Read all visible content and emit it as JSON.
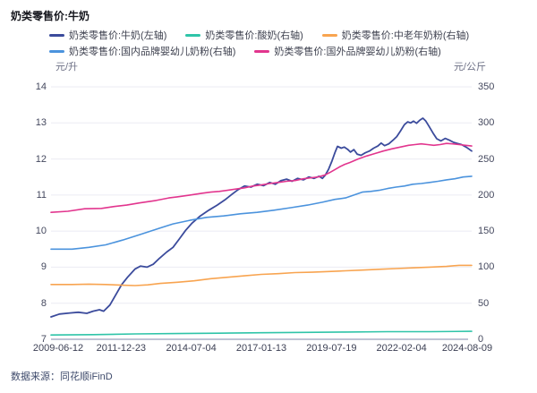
{
  "title": "奶类零售价:牛奶",
  "source": "数据来源：同花顺iFinD",
  "axes": {
    "left_unit": "元/升",
    "right_unit": "元/公斤",
    "left_ticks": [
      "14",
      "13",
      "12",
      "11",
      "10",
      "9",
      "8",
      "7"
    ],
    "right_ticks": [
      "350",
      "300",
      "250",
      "200",
      "150",
      "100",
      "50",
      "0"
    ],
    "x_labels": [
      "2009-06-12",
      "2011-12-23",
      "2014-07-04",
      "2017-01-13",
      "2019-07-19",
      "2022-02-04",
      "2024-08-09"
    ]
  },
  "legend": [
    {
      "label": "奶类零售价:牛奶(左轴)",
      "color": "#3b4b9c",
      "row": 0
    },
    {
      "label": "奶类零售价:酸奶(右轴)",
      "color": "#2fc4a8",
      "row": 0
    },
    {
      "label": "奶类零售价:中老年奶粉(右轴)",
      "color": "#f8a450",
      "row": 0
    },
    {
      "label": "奶类零售价:国内品牌婴幼儿奶粉(右轴)",
      "color": "#4b93dd",
      "row": 1
    },
    {
      "label": "奶类零售价:国外品牌婴幼儿奶粉(右轴)",
      "color": "#e2358e",
      "row": 1
    }
  ],
  "chart_data": {
    "type": "line",
    "title": "奶类零售价:牛奶",
    "x_range": [
      "2009-06-12",
      "2024-08-09"
    ],
    "x_encoding": "fraction of date range 2009-06-12 (0) to 2024-08-09 (1)",
    "x_tick_labels": [
      "2009-06-12",
      "2011-12-23",
      "2014-07-04",
      "2017-01-13",
      "2019-07-19",
      "2022-02-04",
      "2024-08-09"
    ],
    "left_axis": {
      "label": "元/升",
      "min": 7,
      "max": 14
    },
    "right_axis": {
      "label": "元/公斤",
      "min": 0,
      "max": 350
    },
    "grid": "horizontal",
    "legend_position": "top",
    "series": [
      {
        "name": "奶类零售价:牛奶(左轴)",
        "axis": "left",
        "unit": "元/升",
        "color": "#3b4b9c",
        "width": 1.8,
        "points": [
          [
            0,
            7.62
          ],
          [
            0.02,
            7.7
          ],
          [
            0.045,
            7.73
          ],
          [
            0.065,
            7.75
          ],
          [
            0.085,
            7.72
          ],
          [
            0.1,
            7.78
          ],
          [
            0.115,
            7.82
          ],
          [
            0.125,
            7.78
          ],
          [
            0.14,
            7.95
          ],
          [
            0.155,
            8.25
          ],
          [
            0.168,
            8.52
          ],
          [
            0.182,
            8.72
          ],
          [
            0.2,
            8.95
          ],
          [
            0.213,
            9.03
          ],
          [
            0.228,
            9.0
          ],
          [
            0.243,
            9.08
          ],
          [
            0.258,
            9.25
          ],
          [
            0.275,
            9.42
          ],
          [
            0.29,
            9.55
          ],
          [
            0.305,
            9.78
          ],
          [
            0.32,
            10.02
          ],
          [
            0.335,
            10.22
          ],
          [
            0.355,
            10.42
          ],
          [
            0.375,
            10.58
          ],
          [
            0.395,
            10.72
          ],
          [
            0.415,
            10.88
          ],
          [
            0.43,
            11.02
          ],
          [
            0.445,
            11.15
          ],
          [
            0.46,
            11.25
          ],
          [
            0.475,
            11.22
          ],
          [
            0.49,
            11.3
          ],
          [
            0.505,
            11.26
          ],
          [
            0.52,
            11.35
          ],
          [
            0.533,
            11.3
          ],
          [
            0.547,
            11.4
          ],
          [
            0.56,
            11.44
          ],
          [
            0.573,
            11.38
          ],
          [
            0.586,
            11.46
          ],
          [
            0.6,
            11.42
          ],
          [
            0.613,
            11.5
          ],
          [
            0.625,
            11.46
          ],
          [
            0.637,
            11.52
          ],
          [
            0.645,
            11.46
          ],
          [
            0.652,
            11.55
          ],
          [
            0.66,
            11.72
          ],
          [
            0.668,
            11.95
          ],
          [
            0.675,
            12.18
          ],
          [
            0.681,
            12.35
          ],
          [
            0.69,
            12.3
          ],
          [
            0.697,
            12.33
          ],
          [
            0.705,
            12.27
          ],
          [
            0.712,
            12.19
          ],
          [
            0.72,
            12.26
          ],
          [
            0.728,
            12.13
          ],
          [
            0.737,
            12.1
          ],
          [
            0.747,
            12.17
          ],
          [
            0.757,
            12.22
          ],
          [
            0.767,
            12.3
          ],
          [
            0.777,
            12.36
          ],
          [
            0.785,
            12.44
          ],
          [
            0.793,
            12.37
          ],
          [
            0.803,
            12.42
          ],
          [
            0.813,
            12.52
          ],
          [
            0.822,
            12.62
          ],
          [
            0.831,
            12.78
          ],
          [
            0.84,
            12.95
          ],
          [
            0.848,
            13.03
          ],
          [
            0.855,
            13.0
          ],
          [
            0.862,
            13.05
          ],
          [
            0.869,
            12.99
          ],
          [
            0.877,
            13.08
          ],
          [
            0.884,
            13.13
          ],
          [
            0.891,
            13.05
          ],
          [
            0.899,
            12.9
          ],
          [
            0.908,
            12.72
          ],
          [
            0.917,
            12.56
          ],
          [
            0.927,
            12.5
          ],
          [
            0.937,
            12.57
          ],
          [
            0.947,
            12.52
          ],
          [
            0.957,
            12.46
          ],
          [
            0.966,
            12.43
          ],
          [
            0.976,
            12.4
          ],
          [
            0.988,
            12.32
          ],
          [
            1,
            12.22
          ]
        ]
      },
      {
        "name": "奶类零售价:酸奶(右轴)",
        "axis": "right",
        "unit": "元/公斤",
        "color": "#2fc4a8",
        "width": 1.6,
        "points": [
          [
            0,
            6
          ],
          [
            0.1,
            6.5
          ],
          [
            0.2,
            7.5
          ],
          [
            0.3,
            8
          ],
          [
            0.4,
            8.5
          ],
          [
            0.5,
            9
          ],
          [
            0.6,
            9.5
          ],
          [
            0.7,
            10
          ],
          [
            0.8,
            10.5
          ],
          [
            0.9,
            10.5
          ],
          [
            1,
            11
          ]
        ]
      },
      {
        "name": "奶类零售价:中老年奶粉(右轴)",
        "axis": "right",
        "unit": "元/公斤",
        "color": "#f8a450",
        "width": 1.6,
        "points": [
          [
            0,
            76
          ],
          [
            0.05,
            76
          ],
          [
            0.09,
            76.5
          ],
          [
            0.13,
            76
          ],
          [
            0.17,
            75
          ],
          [
            0.2,
            74.5
          ],
          [
            0.23,
            75.5
          ],
          [
            0.26,
            77.5
          ],
          [
            0.3,
            79
          ],
          [
            0.34,
            81
          ],
          [
            0.38,
            84
          ],
          [
            0.42,
            86
          ],
          [
            0.46,
            88
          ],
          [
            0.5,
            90
          ],
          [
            0.54,
            91
          ],
          [
            0.58,
            92.5
          ],
          [
            0.62,
            93
          ],
          [
            0.66,
            94
          ],
          [
            0.7,
            95
          ],
          [
            0.74,
            96
          ],
          [
            0.78,
            97
          ],
          [
            0.82,
            98
          ],
          [
            0.86,
            99
          ],
          [
            0.9,
            100
          ],
          [
            0.94,
            101
          ],
          [
            0.97,
            102.5
          ],
          [
            1,
            102.5
          ]
        ]
      },
      {
        "name": "奶类零售价:国内品牌婴幼儿奶粉(右轴)",
        "axis": "right",
        "unit": "元/公斤",
        "color": "#4b93dd",
        "width": 1.6,
        "points": [
          [
            0,
            125
          ],
          [
            0.05,
            125
          ],
          [
            0.09,
            127.5
          ],
          [
            0.13,
            131
          ],
          [
            0.17,
            137.5
          ],
          [
            0.21,
            145
          ],
          [
            0.25,
            152.5
          ],
          [
            0.29,
            160
          ],
          [
            0.33,
            165
          ],
          [
            0.37,
            169
          ],
          [
            0.41,
            171
          ],
          [
            0.45,
            174
          ],
          [
            0.49,
            176
          ],
          [
            0.53,
            179
          ],
          [
            0.57,
            182.5
          ],
          [
            0.61,
            186
          ],
          [
            0.645,
            190
          ],
          [
            0.675,
            194
          ],
          [
            0.7,
            196
          ],
          [
            0.72,
            200
          ],
          [
            0.74,
            204
          ],
          [
            0.76,
            205
          ],
          [
            0.78,
            206.5
          ],
          [
            0.8,
            209
          ],
          [
            0.82,
            211
          ],
          [
            0.84,
            212.5
          ],
          [
            0.86,
            215
          ],
          [
            0.88,
            216
          ],
          [
            0.9,
            217.5
          ],
          [
            0.92,
            219
          ],
          [
            0.94,
            221
          ],
          [
            0.96,
            222.5
          ],
          [
            0.98,
            225
          ],
          [
            1,
            226
          ]
        ]
      },
      {
        "name": "奶类零售价:国外品牌婴幼儿奶粉(右轴)",
        "axis": "right",
        "unit": "元/公斤",
        "color": "#e2358e",
        "width": 1.6,
        "points": [
          [
            0,
            176
          ],
          [
            0.04,
            177.5
          ],
          [
            0.08,
            181
          ],
          [
            0.12,
            181.5
          ],
          [
            0.15,
            184
          ],
          [
            0.18,
            186
          ],
          [
            0.21,
            189
          ],
          [
            0.25,
            192.5
          ],
          [
            0.28,
            196
          ],
          [
            0.3,
            197.5
          ],
          [
            0.33,
            200
          ],
          [
            0.36,
            202.5
          ],
          [
            0.38,
            204
          ],
          [
            0.4,
            205
          ],
          [
            0.43,
            207.5
          ],
          [
            0.46,
            210
          ],
          [
            0.48,
            212.5
          ],
          [
            0.5,
            214
          ],
          [
            0.52,
            216
          ],
          [
            0.54,
            217.5
          ],
          [
            0.56,
            219
          ],
          [
            0.58,
            220
          ],
          [
            0.6,
            222.5
          ],
          [
            0.62,
            224
          ],
          [
            0.635,
            225
          ],
          [
            0.65,
            227.5
          ],
          [
            0.662,
            231
          ],
          [
            0.674,
            235
          ],
          [
            0.686,
            239
          ],
          [
            0.698,
            242.5
          ],
          [
            0.71,
            245
          ],
          [
            0.73,
            250
          ],
          [
            0.75,
            254
          ],
          [
            0.77,
            257.5
          ],
          [
            0.79,
            261
          ],
          [
            0.81,
            264
          ],
          [
            0.83,
            266.5
          ],
          [
            0.85,
            269
          ],
          [
            0.865,
            270
          ],
          [
            0.88,
            271
          ],
          [
            0.895,
            270
          ],
          [
            0.91,
            269
          ],
          [
            0.925,
            270
          ],
          [
            0.94,
            271.5
          ],
          [
            0.955,
            271
          ],
          [
            0.97,
            270
          ],
          [
            0.985,
            269
          ],
          [
            1,
            268
          ]
        ]
      }
    ],
    "plot_colors": {
      "gridline": "#ebebf3",
      "baseline": "#bfc3d4",
      "tick_text": "#44485e",
      "background": "#ffffff"
    }
  }
}
